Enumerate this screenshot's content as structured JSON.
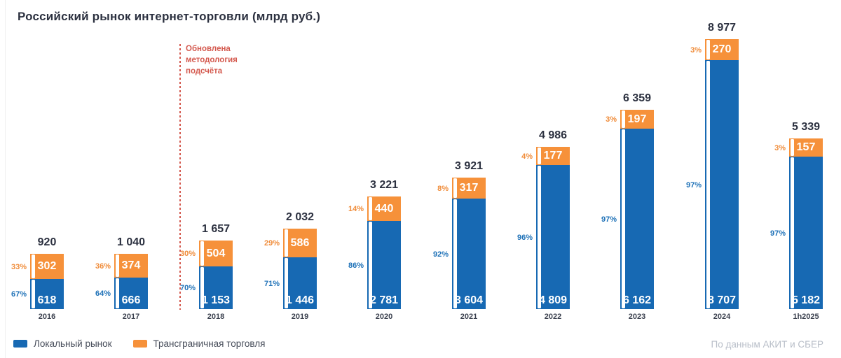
{
  "title": "Российский рынок интернет-торговли (млрд руб.)",
  "annotation": {
    "lines": [
      "Обновлена",
      "методология",
      "подсчёта"
    ],
    "color": "#d4594e",
    "position": "between 2017 and 2018"
  },
  "legend": {
    "items": [
      {
        "label": "Локальный рынок",
        "color": "#1769b3"
      },
      {
        "label": "Трансграничная торговля",
        "color": "#f6913a"
      }
    ]
  },
  "source": "По данным АКИТ и СБЕР",
  "colors": {
    "local_blue": "#1769b3",
    "crossborder_orange": "#f6913a",
    "title_dark": "#2c3140",
    "annotation_red": "#d4594e",
    "source_gray": "#b8bec8"
  },
  "chart_data": {
    "type": "bar",
    "stacked": true,
    "title": "Российский рынок интернет-торговли (млрд руб.)",
    "categories": [
      "2016",
      "2017",
      "2018",
      "2019",
      "2020",
      "2021",
      "2022",
      "2023",
      "2024",
      "1h2025"
    ],
    "totals": [
      920,
      1040,
      1657,
      2032,
      3221,
      3921,
      4986,
      6359,
      8977,
      5339
    ],
    "series": [
      {
        "name": "Локальный рынок",
        "color": "#1769b3",
        "values": [
          618,
          666,
          1153,
          1446,
          2781,
          3604,
          4809,
          6162,
          8707,
          5182
        ],
        "shares_pct": [
          67,
          64,
          70,
          71,
          86,
          92,
          96,
          97,
          97,
          97
        ]
      },
      {
        "name": "Трансграничная торговля",
        "color": "#f6913a",
        "values": [
          302,
          374,
          504,
          586,
          440,
          317,
          177,
          197,
          270,
          157
        ],
        "shares_pct": [
          33,
          36,
          30,
          29,
          14,
          8,
          4,
          3,
          3,
          3
        ]
      }
    ],
    "legend_position": "bottom-left",
    "grid": false,
    "value_labels": "inside segments, white; totals above bars; shares left of bars"
  }
}
